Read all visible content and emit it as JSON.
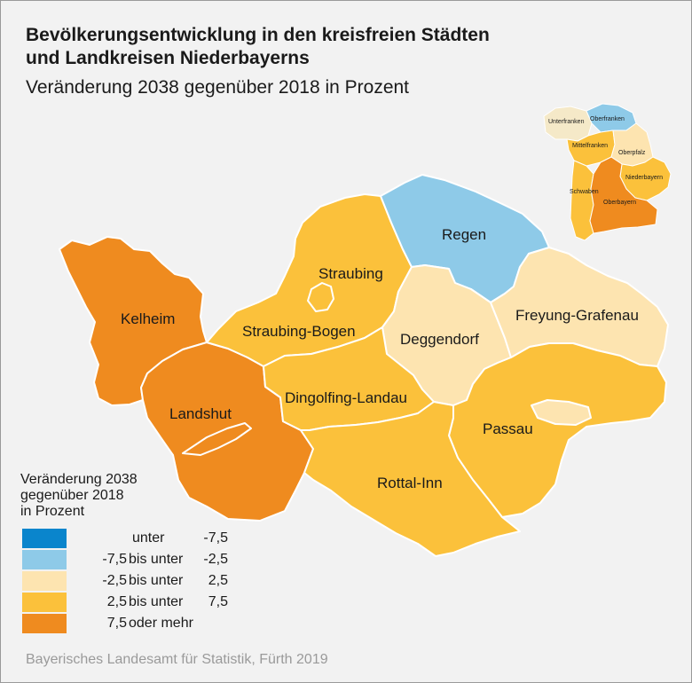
{
  "title": {
    "line1": "Bevölkerungsentwicklung in den kreisfreien Städten",
    "line2": "und Landkreisen Niederbayerns",
    "subtitle": "Veränderung 2038 gegenüber 2018 in Prozent"
  },
  "colors": {
    "c1": "#0a85cc",
    "c2": "#8ecae8",
    "c3": "#fde4b0",
    "c4": "#fbc13b",
    "c5": "#ef8b1f",
    "inset_other": "#f5e9c8"
  },
  "regions": [
    {
      "name": "Kelheim",
      "class": "7,5 oder mehr"
    },
    {
      "name": "Landshut",
      "class": "7,5 oder mehr"
    },
    {
      "name": "Straubing",
      "class": "2,5 bis unter 7,5"
    },
    {
      "name": "Straubing-Bogen",
      "class": "2,5 bis unter 7,5"
    },
    {
      "name": "Regen",
      "class": "-7,5 bis unter -2,5"
    },
    {
      "name": "Deggendorf",
      "class": "-2,5 bis unter 2,5"
    },
    {
      "name": "Freyung-Grafenau",
      "class": "-2,5 bis unter 2,5"
    },
    {
      "name": "Dingolfing-Landau",
      "class": "2,5 bis unter 7,5"
    },
    {
      "name": "Passau",
      "class": "2,5 bis unter 7,5"
    },
    {
      "name": "Rottal-Inn",
      "class": "2,5 bis unter 7,5"
    }
  ],
  "inset": {
    "labels": [
      "Unterfranken",
      "Oberfranken",
      "Mittelfranken",
      "Oberpfalz",
      "Niederbayern",
      "Schwaben",
      "Oberbayern"
    ]
  },
  "legend": {
    "title_lines": [
      "Veränderung 2038",
      "gegenüber 2018",
      "in Prozent"
    ],
    "items": [
      {
        "lo": "unter",
        "mid": "",
        "hi": "-7,5"
      },
      {
        "lo": "-7,5",
        "mid": "bis unter",
        "hi": "-2,5"
      },
      {
        "lo": "-2,5",
        "mid": "bis unter",
        "hi": "2,5"
      },
      {
        "lo": "2,5",
        "mid": "bis unter",
        "hi": "7,5"
      },
      {
        "lo": "7,5",
        "mid": "oder mehr",
        "hi": ""
      }
    ]
  },
  "source": "Bayerisches Landesamt für Statistik, Fürth 2019"
}
